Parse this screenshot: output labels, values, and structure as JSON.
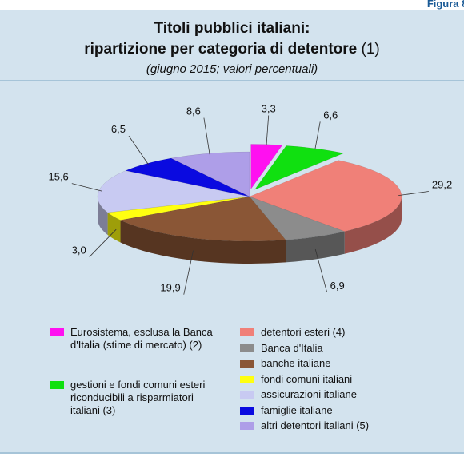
{
  "chart_data": {
    "type": "pie",
    "figure_label": "Figura 8.",
    "title": [
      "Titoli pubblici italiani:",
      "ripartizione per categoria di detentore"
    ],
    "title_note": "(1)",
    "subtitle": "(giugno 2015; valori percentuali)",
    "exploded": [
      0,
      1
    ],
    "series": [
      {
        "name": "Eurosistema, esclusa la Banca d'Italia (stime di mercato) (2)",
        "color": "#ff10f0",
        "values": [
          3.3
        ],
        "value_labels": [
          "3,3"
        ]
      },
      {
        "name": "gestioni e fondi comuni esteri riconducibili a risparmiatori italiani (3)",
        "color": "#10e010",
        "values": [
          6.6
        ],
        "value_labels": [
          "6,6"
        ]
      },
      {
        "name": "detentori esteri (4)",
        "color": "#f08078",
        "values": [
          29.2
        ],
        "value_labels": [
          "29,2"
        ]
      },
      {
        "name": "Banca d'Italia",
        "color": "#8c8c8c",
        "values": [
          6.9
        ],
        "value_labels": [
          "6,9"
        ]
      },
      {
        "name": "banche italiane",
        "color": "#8a5636",
        "values": [
          19.9
        ],
        "value_labels": [
          "19,9"
        ]
      },
      {
        "name": "fondi comuni italiani",
        "color": "#ffff10",
        "values": [
          3.0
        ],
        "value_labels": [
          "3,0"
        ]
      },
      {
        "name": "assicurazioni italiane",
        "color": "#c8caf2",
        "values": [
          15.6
        ],
        "value_labels": [
          "15,6"
        ]
      },
      {
        "name": "famiglie italiane",
        "color": "#0a0ae0",
        "values": [
          6.5
        ],
        "value_labels": [
          "6,5"
        ]
      },
      {
        "name": "altri detentori italiani (5)",
        "color": "#ae9ee8",
        "values": [
          8.6
        ],
        "value_labels": [
          "8,6"
        ]
      }
    ]
  }
}
